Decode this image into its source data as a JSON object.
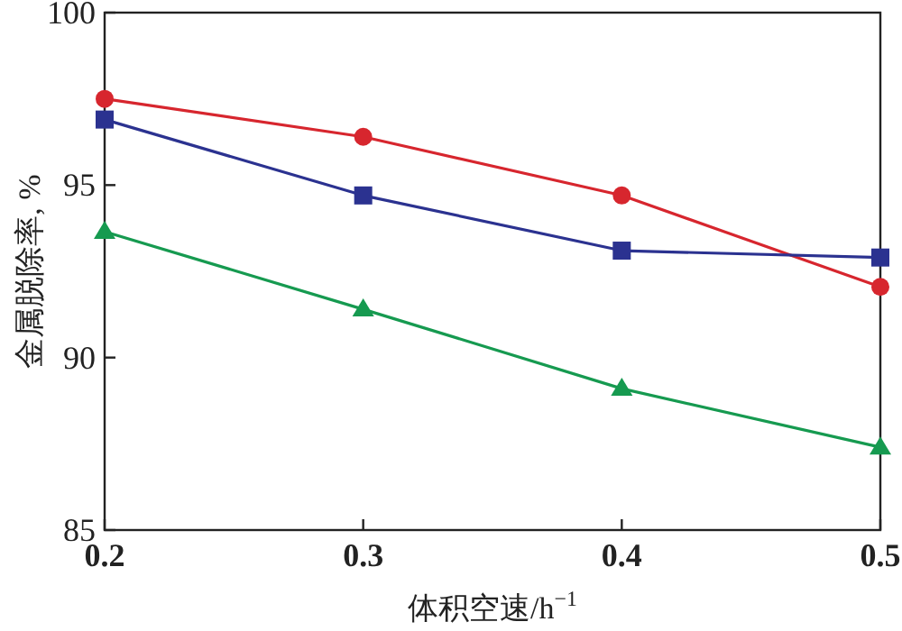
{
  "chart_data": {
    "type": "line",
    "xlabel": "体积空速/h$^{−1}$",
    "ylabel": "金属脱除率, %",
    "x": [
      0.2,
      0.3,
      0.4,
      0.5
    ],
    "xlim": [
      0.2,
      0.5
    ],
    "xticks": [
      0.2,
      0.3,
      0.4,
      0.5
    ],
    "ylim": [
      85,
      100
    ],
    "yticks": [
      85,
      90,
      95,
      100
    ],
    "grid": false,
    "series": [
      {
        "color": "#d7262e",
        "marker": "circle",
        "values": [
          97.5,
          96.4,
          94.7,
          92.05
        ]
      },
      {
        "color": "#2b3290",
        "marker": "square",
        "values": [
          96.9,
          94.7,
          93.1,
          92.9
        ]
      },
      {
        "color": "#169a50",
        "marker": "triangle",
        "values": [
          93.65,
          91.4,
          89.1,
          87.4
        ]
      }
    ]
  }
}
